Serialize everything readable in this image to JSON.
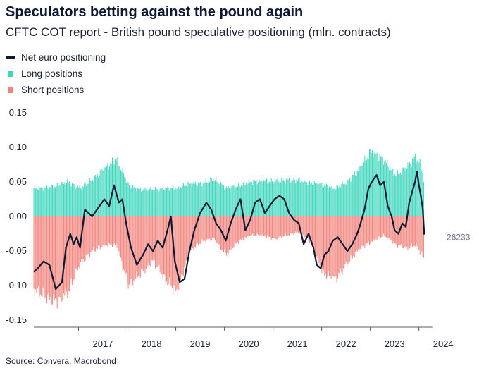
{
  "chart_data": {
    "type": "bar",
    "title": "Speculators betting against the pound again",
    "subtitle": "CFTC COT report - British pound speculative positioning (mln. contracts)",
    "source": "Source: Convera, Macrobond",
    "xlabel": "",
    "ylabel": "",
    "ylim": [
      -0.16,
      0.16
    ],
    "yticks": [
      0.15,
      0.1,
      0.05,
      0.0,
      -0.05,
      -0.1,
      -0.15
    ],
    "ytick_labels": [
      "0.15",
      "0.10",
      "0.05",
      "0.00",
      "-0.05",
      "-0.10",
      "-0.15"
    ],
    "xlim": [
      2016.3,
      2024.5
    ],
    "xticks": [
      2017,
      2018,
      2019,
      2020,
      2021,
      2022,
      2023,
      2024
    ],
    "xtick_labels": [
      "2017",
      "2018",
      "2019",
      "2020",
      "2021",
      "2022",
      "2023",
      "2024"
    ],
    "end_label": "-26233",
    "legend": [
      {
        "label": "Net euro positioning",
        "kind": "line",
        "color": "#0e1a33"
      },
      {
        "label": "Long positions",
        "kind": "bar",
        "color": "#40d7bd"
      },
      {
        "label": "Short positions",
        "kind": "bar",
        "color": "#f2847d"
      }
    ],
    "series": [
      {
        "name": "Long positions",
        "color": "#40d7bd",
        "type": "bar",
        "x": [
          2016.3,
          2016.5,
          2016.75,
          2017.0,
          2017.25,
          2017.5,
          2017.75,
          2018.0,
          2018.25,
          2018.5,
          2018.75,
          2019.0,
          2019.25,
          2019.5,
          2019.75,
          2020.0,
          2020.25,
          2020.5,
          2020.75,
          2021.0,
          2021.25,
          2021.5,
          2021.75,
          2022.0,
          2022.25,
          2022.5,
          2022.75,
          2023.0,
          2023.25,
          2023.5,
          2023.75,
          2024.0,
          2024.15,
          2024.28,
          2024.33
        ],
        "values": [
          0.045,
          0.045,
          0.048,
          0.055,
          0.045,
          0.058,
          0.075,
          0.092,
          0.05,
          0.042,
          0.043,
          0.045,
          0.045,
          0.052,
          0.052,
          0.06,
          0.045,
          0.048,
          0.055,
          0.057,
          0.055,
          0.058,
          0.058,
          0.053,
          0.05,
          0.045,
          0.056,
          0.075,
          0.105,
          0.09,
          0.065,
          0.08,
          0.095,
          0.08,
          0.05
        ]
      },
      {
        "name": "Short positions",
        "color": "#f2847d",
        "type": "bar",
        "x": [
          2016.3,
          2016.5,
          2016.75,
          2017.0,
          2017.25,
          2017.5,
          2017.75,
          2018.0,
          2018.25,
          2018.5,
          2018.75,
          2019.0,
          2019.25,
          2019.5,
          2019.75,
          2020.0,
          2020.25,
          2020.5,
          2020.75,
          2021.0,
          2021.25,
          2021.5,
          2021.75,
          2022.0,
          2022.25,
          2022.5,
          2022.75,
          2023.0,
          2023.25,
          2023.5,
          2023.75,
          2024.0,
          2024.15,
          2024.28,
          2024.33
        ],
        "values": [
          -0.115,
          -0.125,
          -0.135,
          -0.12,
          -0.075,
          -0.055,
          -0.045,
          -0.045,
          -0.11,
          -0.09,
          -0.07,
          -0.1,
          -0.12,
          -0.055,
          -0.04,
          -0.035,
          -0.06,
          -0.04,
          -0.03,
          -0.03,
          -0.035,
          -0.03,
          -0.025,
          -0.04,
          -0.09,
          -0.1,
          -0.075,
          -0.05,
          -0.04,
          -0.03,
          -0.045,
          -0.05,
          -0.045,
          -0.06,
          -0.07
        ]
      },
      {
        "name": "Net euro positioning",
        "color": "#0e1a33",
        "type": "line",
        "x": [
          2016.3,
          2016.38,
          2016.5,
          2016.62,
          2016.75,
          2016.88,
          2016.96,
          2017.05,
          2017.12,
          2017.18,
          2017.25,
          2017.35,
          2017.5,
          2017.6,
          2017.75,
          2017.85,
          2017.95,
          2018.05,
          2018.12,
          2018.2,
          2018.3,
          2018.42,
          2018.55,
          2018.65,
          2018.75,
          2018.85,
          2018.95,
          2019.05,
          2019.12,
          2019.2,
          2019.3,
          2019.4,
          2019.5,
          2019.6,
          2019.72,
          2019.85,
          2019.95,
          2020.05,
          2020.15,
          2020.25,
          2020.35,
          2020.45,
          2020.55,
          2020.65,
          2020.75,
          2020.85,
          2020.95,
          2021.05,
          2021.15,
          2021.25,
          2021.35,
          2021.45,
          2021.55,
          2021.65,
          2021.75,
          2021.85,
          2021.95,
          2022.05,
          2022.12,
          2022.2,
          2022.28,
          2022.36,
          2022.45,
          2022.55,
          2022.65,
          2022.75,
          2022.85,
          2022.95,
          2023.0,
          2023.1,
          2023.18,
          2023.25,
          2023.35,
          2023.42,
          2023.5,
          2023.58,
          2023.66,
          2023.72,
          2023.8,
          2023.88,
          2023.95,
          2024.02,
          2024.08,
          2024.14,
          2024.18,
          2024.22,
          2024.26,
          2024.3,
          2024.33
        ],
        "values": [
          -0.08,
          -0.075,
          -0.065,
          -0.07,
          -0.105,
          -0.095,
          -0.045,
          -0.025,
          -0.04,
          -0.03,
          -0.045,
          0.01,
          0.0,
          0.01,
          0.025,
          0.015,
          0.045,
          0.02,
          0.025,
          -0.01,
          -0.045,
          -0.07,
          -0.055,
          -0.04,
          -0.05,
          -0.035,
          -0.045,
          -0.02,
          0.0,
          -0.065,
          -0.095,
          -0.09,
          -0.05,
          -0.02,
          0.005,
          0.02,
          0.01,
          -0.01,
          -0.02,
          -0.035,
          -0.01,
          0.01,
          0.025,
          -0.02,
          -0.005,
          0.02,
          0.025,
          0.005,
          0.015,
          0.025,
          0.03,
          0.025,
          0.005,
          -0.005,
          -0.01,
          -0.04,
          -0.025,
          -0.045,
          -0.07,
          -0.075,
          -0.055,
          -0.05,
          -0.035,
          -0.03,
          -0.04,
          -0.05,
          -0.04,
          -0.025,
          -0.015,
          0.01,
          0.04,
          0.05,
          0.06,
          0.045,
          0.05,
          0.015,
          0.0,
          -0.02,
          -0.025,
          -0.01,
          -0.015,
          0.02,
          0.035,
          0.05,
          0.065,
          0.045,
          0.03,
          0.01,
          -0.026233
        ]
      }
    ]
  }
}
